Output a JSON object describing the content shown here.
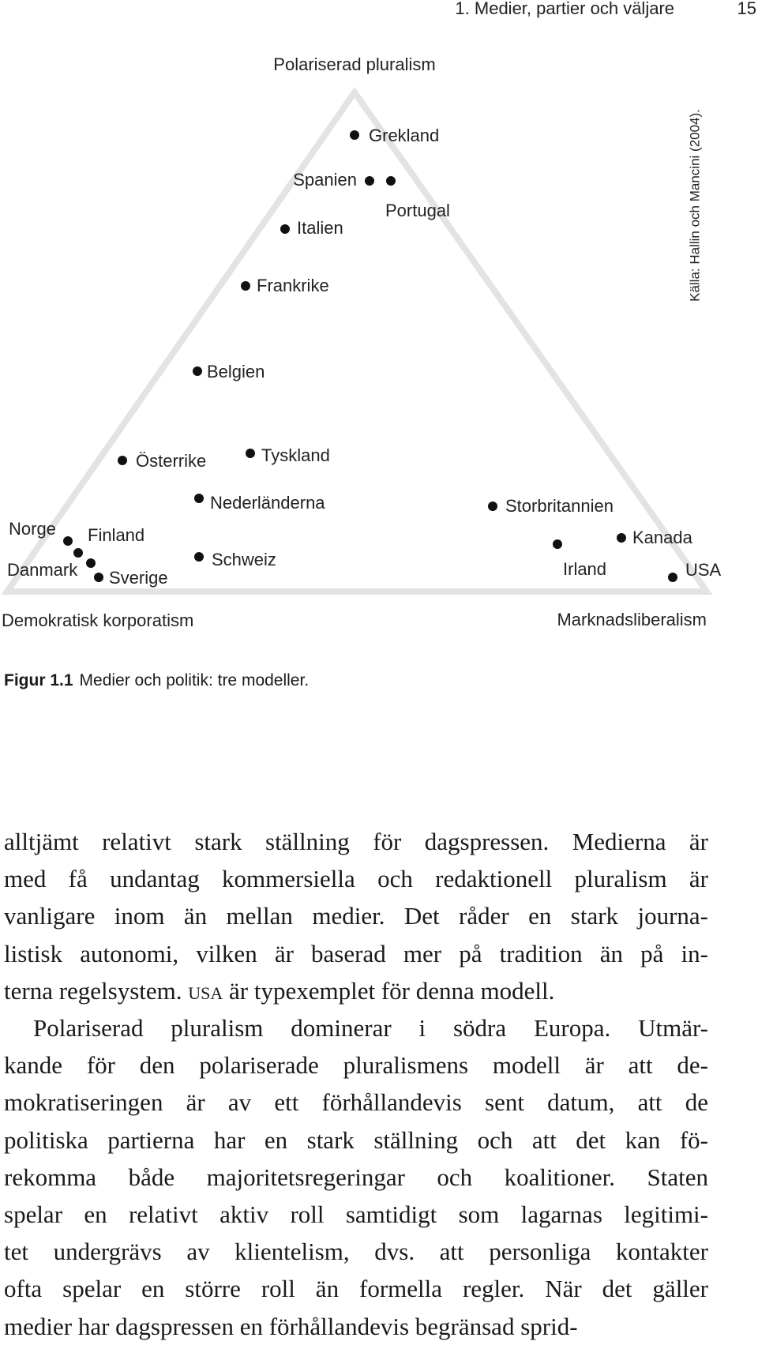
{
  "header": {
    "running_title": "1. Medier, partier och väljare",
    "page_number": "15"
  },
  "figure": {
    "corners": {
      "top": "Polariserad pluralism",
      "left": "Demokratisk korporatism",
      "right": "Marknadsliberalism"
    },
    "source": "Källa: Hallin och Mancini (2004).",
    "countries": [
      "Grekland",
      "Spanien",
      "Portugal",
      "Italien",
      "Frankrike",
      "Belgien",
      "Österrike",
      "Tyskland",
      "Nederländerna",
      "Storbritannien",
      "Kanada",
      "Irland",
      "USA",
      "Norge",
      "Finland",
      "Danmark",
      "Sverige",
      "Schweiz"
    ],
    "caption": {
      "label": "Figur 1.1",
      "text": "Medier och politik: tre modeller."
    }
  },
  "body": {
    "paragraphs": [
      {
        "lines": [
          "alltjämt relativt stark ställning för dagspressen. Medierna är",
          "med få undantag kommersiella och redaktionell pluralism är",
          "vanligare inom än mellan medier. Det råder en stark journa-",
          "listisk autonomi, vilken är baserad mer på tradition än på in-",
          [
            "terna regelsystem. ",
            "USA",
            " är typexemplet för denna modell."
          ]
        ]
      },
      {
        "lines": [
          "Polariserad pluralism dominerar i södra Europa. Utmär-",
          "kande för den polariserade pluralismens modell är att de-",
          "mokratiseringen är av ett förhållandevis sent datum, att de",
          "politiska partierna har en stark ställning och att det kan fö-",
          "rekomma både majoritetsregeringar och koalitioner. Staten",
          "spelar en relativt aktiv roll samtidigt som lagarnas legitimi-",
          "tet undergrävs av klientelism, dvs. att personliga kontakter",
          "ofta spelar en större roll än formella regler. När det gäller",
          "medier har dagspressen en förhållandevis begränsad sprid-"
        ]
      }
    ]
  }
}
